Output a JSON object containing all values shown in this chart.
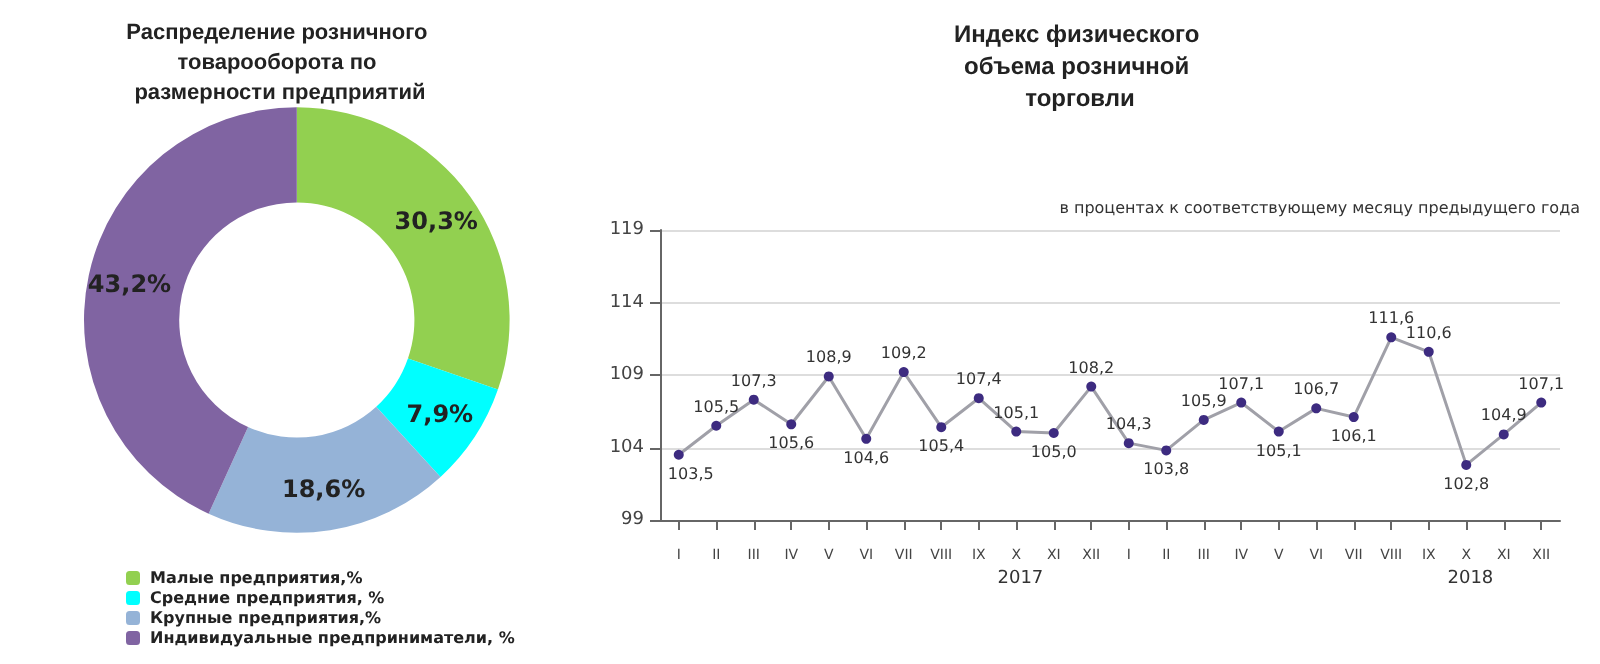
{
  "chart_data": [
    {
      "type": "donut",
      "title": "Распределение розничного товарооборота по размерности предприятий",
      "categories": [
        "Малые предприятия,%",
        "Средние предприятия, %",
        "Крупные предприятия,%",
        "Индивидуальные предприниматели, %"
      ],
      "values": [
        30.3,
        7.9,
        18.6,
        43.2
      ],
      "colors": [
        "#92d050",
        "#00ffff",
        "#95b3d7",
        "#8064a2"
      ],
      "value_labels": [
        "30,3%",
        "7,9%",
        "18,6%",
        "43,2%"
      ],
      "legend": "bottom"
    },
    {
      "type": "line",
      "title": "Индекс физического объема розничной торговли",
      "categories": [
        "I",
        "II",
        "III",
        "IV",
        "V",
        "VI",
        "VII",
        "VIII",
        "IX",
        "X",
        "XI",
        "XII",
        "I",
        "II",
        "III",
        "IV",
        "V",
        "VI",
        "VII",
        "VIII",
        "IX",
        "X",
        "XI",
        "XII"
      ],
      "series": [
        {
          "color": "#3d2b80",
          "values": [
            103.5,
            105.5,
            107.3,
            105.6,
            108.9,
            104.6,
            109.2,
            105.4,
            107.4,
            105.1,
            105.0,
            108.2,
            104.3,
            103.8,
            105.9,
            107.1,
            105.1,
            106.7,
            106.1,
            111.6,
            110.6,
            102.8,
            104.9,
            107.1
          ],
          "value_labels": [
            "103,5",
            "105,5",
            "107,3",
            "105,6",
            "108,9",
            "104,6",
            "109,2",
            "105,4",
            "107,4",
            "105,1",
            "105,0",
            "108,2",
            "104,3",
            "103,8",
            "105,9",
            "107,1",
            "105,1",
            "106,7",
            "106,1",
            "111,6",
            "110,6",
            "102,8",
            "104,9",
            "107,1"
          ]
        }
      ],
      "ylim": [
        99,
        119
      ],
      "yticks": [
        99,
        104,
        109,
        114,
        119
      ],
      "grid": "y",
      "marker": "circle",
      "line_style": "solid",
      "legend": false,
      "annotations": [
        "в процентах к соответствующему месяцу предыдущего года",
        "2017",
        "2018"
      ]
    }
  ]
}
